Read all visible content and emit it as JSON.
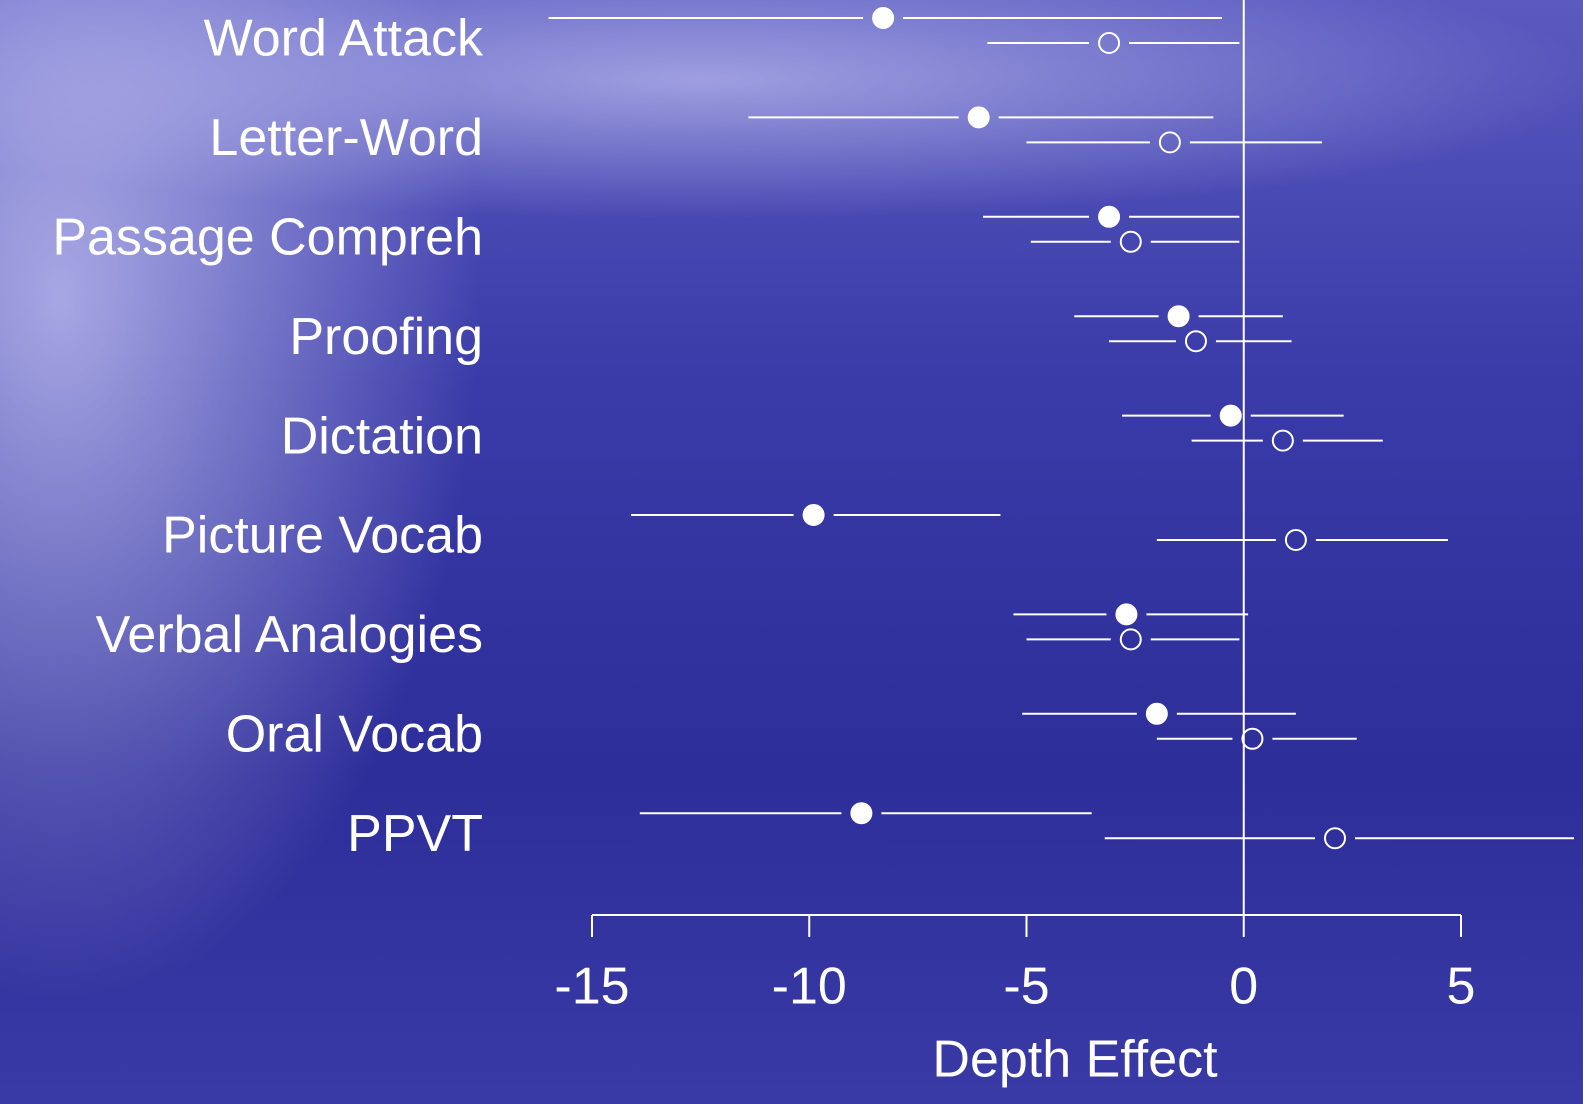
{
  "chart_data": {
    "type": "forest",
    "categories": [
      "Word Attack",
      "Letter-Word",
      "Passage Compreh",
      "Proofing",
      "Dictation",
      "Picture Vocab",
      "Verbal Analogies",
      "Oral Vocab",
      "PPVT"
    ],
    "series": [
      {
        "color": "#ffffff",
        "fill": "#ffffff",
        "values": [
          -8.3,
          -6.1,
          -3.1,
          -1.5,
          -0.3,
          -9.9,
          -2.7,
          -2.0,
          -8.8
        ],
        "lower": [
          -16.0,
          -11.4,
          -6.0,
          -3.9,
          -2.8,
          -14.1,
          -5.3,
          -5.1,
          -13.9
        ],
        "upper": [
          -0.5,
          -0.7,
          -0.1,
          0.9,
          2.3,
          -5.6,
          0.1,
          1.2,
          -3.5
        ]
      },
      {
        "color": "#ffffff",
        "fill": "none",
        "values": [
          -3.1,
          -1.7,
          -2.6,
          -1.1,
          0.9,
          1.2,
          -2.6,
          0.2,
          2.1
        ],
        "lower": [
          -5.9,
          -5.0,
          -4.9,
          -3.1,
          -1.2,
          -2.0,
          -5.0,
          -2.0,
          -3.2
        ],
        "upper": [
          -0.1,
          1.8,
          -0.1,
          1.1,
          3.2,
          4.7,
          -0.1,
          2.6,
          7.6
        ]
      }
    ],
    "xlabel": "Depth Effect",
    "xlim": [
      -15,
      5
    ],
    "xticks": [
      -15,
      -10,
      -5,
      0,
      5
    ],
    "reference_line": 0
  }
}
